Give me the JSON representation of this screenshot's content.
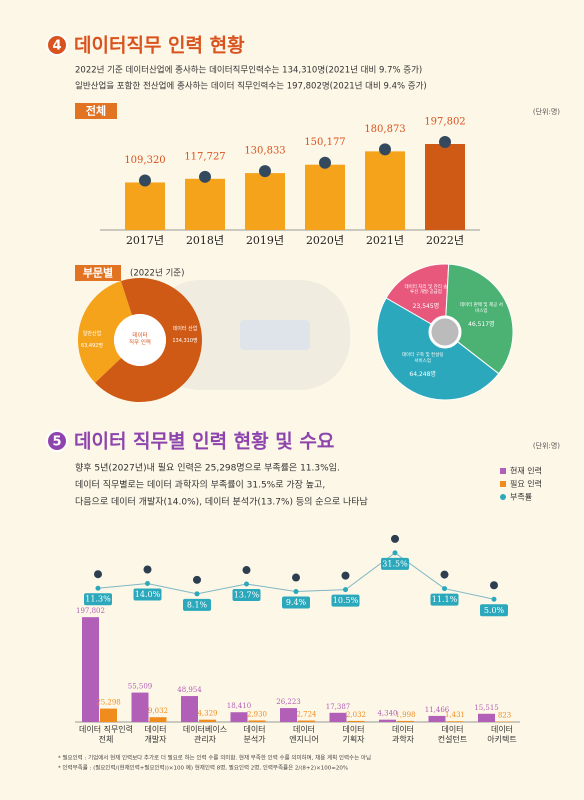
{
  "chart_data": [
    {
      "type": "bar",
      "section_number": "4",
      "title": "데이터직무 인력 현황",
      "subtitle": [
        "2022년 기준 데이터산업에 종사하는 데이터직무인력수는 134,310명(2021년 대비 9.7% 증가)",
        "일반산업을 포함한 전산업에 종사하는 데이터 직무인력수는 197,802명(2021년 대비 9.4% 증가)"
      ],
      "label": "전체",
      "unit": "(단위:명)",
      "categories": [
        "2017년",
        "2018년",
        "2019년",
        "2020년",
        "2021년",
        "2022년"
      ],
      "values": [
        109320,
        117727,
        130833,
        150177,
        180873,
        197802
      ],
      "value_labels": [
        "109,320",
        "117,727",
        "130,833",
        "150,177",
        "180,873",
        "197,802"
      ],
      "colors": [
        "#f5a31a",
        "#f5a31a",
        "#f5a31a",
        "#f5a31a",
        "#f5a31a",
        "#cf5a16"
      ],
      "ylim": [
        0,
        230000
      ]
    },
    {
      "type": "donut",
      "label": "부문별",
      "note": "(2022년 기준)",
      "center_label": "데이터\n직무 인력",
      "categories": [
        "데이터 산업",
        "일반산업"
      ],
      "values": [
        134310,
        63492
      ],
      "value_labels": [
        "134,310명",
        "63,492명"
      ],
      "colors": [
        "#cf5a16",
        "#f5a31a"
      ]
    },
    {
      "type": "donut",
      "categories": [
        "데이터 처리 및 관리 솔루션 개발·공급업",
        "데이터 판매 및 제공 서비스업",
        "데이터 구축 및 컨설팅 서비스업"
      ],
      "values": [
        23545,
        46517,
        64248
      ],
      "value_labels": [
        "23,545명",
        "46,517명",
        "64,248명"
      ],
      "colors": [
        "#e8587d",
        "#4cb273",
        "#2ba8bb"
      ]
    },
    {
      "type": "bar",
      "section_number": "5",
      "title": "데이터 직무별 인력 현황 및 수요",
      "unit": "(단위:명)",
      "subtitle": [
        "향후 5년(2027년)내 필요 인력은 25,298명으로 부족률은 11.3%임.",
        "데이터 직무별로는 데이터 과학자의 부족률이 31.5%로 가장 높고,",
        "다음으로 데이터 개발자(14.0%), 데이터 분석가(13.7%) 등의 순으로 나타남"
      ],
      "categories": [
        "데이터 직무인력\n전체",
        "데이터\n개발자",
        "데이터베이스\n관리자",
        "데이터\n분석가",
        "데이터\n엔지니어",
        "데이터\n기획자",
        "데이터\n과학자",
        "데이터\n컨설턴트",
        "데이터\n아키텍트"
      ],
      "series": [
        {
          "name": "현재 인력",
          "color": "#b25fb8",
          "values": [
            197802,
            55509,
            48954,
            18410,
            26223,
            17387,
            4340,
            11466,
            15515
          ],
          "value_labels": [
            "197,802",
            "55,509",
            "48,954",
            "18,410",
            "26,223",
            "17,387",
            "4,340",
            "11,466",
            "15,515"
          ]
        },
        {
          "name": "필요 인력",
          "color": "#f08c1e",
          "values": [
            25298,
            9032,
            4329,
            2930,
            2724,
            2032,
            1998,
            1431,
            823
          ],
          "value_labels": [
            "25,298",
            "9,032",
            "4,329",
            "2,930",
            "2,724",
            "2,032",
            "1,998",
            "1,431",
            "823"
          ]
        },
        {
          "name": "부족률",
          "color": "#2ba8bb",
          "axis": "y2",
          "values": [
            11.3,
            14.0,
            8.1,
            13.7,
            9.4,
            10.5,
            31.5,
            11.1,
            5.0
          ],
          "value_labels": [
            "11.3%",
            "14.0%",
            "8.1%",
            "13.7%",
            "9.4%",
            "10.5%",
            "31.5%",
            "11.1%",
            "5.0%"
          ]
        }
      ],
      "ylim": [
        0,
        200000
      ],
      "y2lim": [
        0,
        40
      ],
      "notes": [
        "* 필요인력 : 기업에서 현재 인력보다 추가로 더 필요로 하는 인력 수를 의미함. 현재 부족한 인력 수를 의미하며, 채용 계획 인력수는 아님",
        "* 인력부족률 : (필요인력/(현재인력+필요인력))×100     예) 현재인력 8명, 필요인력 2명, 인력부족률은 2/(8+2)×100=20%"
      ]
    }
  ]
}
